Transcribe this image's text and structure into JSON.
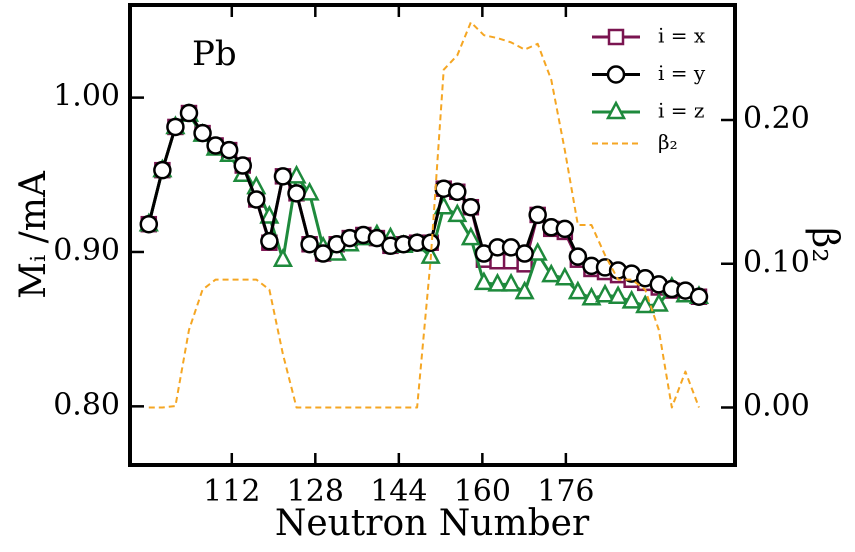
{
  "chart_data": {
    "type": "line",
    "annotation": "Pb",
    "xlabel": "Neutron Number",
    "ylabel": "Mᵢ /mA",
    "y2label": "β₂",
    "x": [
      96.1,
      98.7,
      101.2,
      103.8,
      106.4,
      108.9,
      111.5,
      114.1,
      116.7,
      119.2,
      121.8,
      124.4,
      126.9,
      129.5,
      132.1,
      134.6,
      137.2,
      139.8,
      142.4,
      144.9,
      147.5,
      150.1,
      152.6,
      155.2,
      157.8,
      160.3,
      162.9,
      165.5,
      168.1,
      170.6,
      173.2,
      175.8,
      178.3,
      180.9,
      183.5,
      186.0,
      188.6,
      191.2,
      193.8,
      196.3,
      198.9,
      201.5
    ],
    "series": [
      {
        "name": "i = x",
        "color": "#7a1450",
        "marker": "square",
        "axis": "y",
        "values": [
          0.918,
          0.953,
          0.981,
          0.99,
          0.977,
          0.969,
          0.966,
          0.956,
          0.934,
          0.906,
          0.949,
          0.938,
          0.905,
          0.899,
          0.905,
          0.909,
          0.911,
          0.909,
          0.904,
          0.905,
          0.906,
          0.906,
          0.941,
          0.939,
          0.929,
          0.895,
          0.894,
          0.894,
          0.892,
          0.924,
          0.915,
          0.913,
          0.895,
          0.889,
          0.887,
          0.885,
          0.882,
          0.88,
          0.877,
          0.875,
          0.873,
          0.871
        ]
      },
      {
        "name": "i = y",
        "color": "#000000",
        "marker": "circle",
        "axis": "y",
        "values": [
          0.918,
          0.953,
          0.981,
          0.99,
          0.977,
          0.969,
          0.966,
          0.956,
          0.934,
          0.907,
          0.949,
          0.938,
          0.905,
          0.899,
          0.905,
          0.909,
          0.911,
          0.909,
          0.904,
          0.905,
          0.906,
          0.906,
          0.941,
          0.939,
          0.929,
          0.899,
          0.903,
          0.903,
          0.899,
          0.924,
          0.916,
          0.915,
          0.897,
          0.891,
          0.89,
          0.888,
          0.886,
          0.883,
          0.879,
          0.876,
          0.875,
          0.871
        ]
      },
      {
        "name": "i = z",
        "color": "#1e8a3c",
        "marker": "triangle",
        "axis": "y",
        "values": [
          0.918,
          0.953,
          0.981,
          0.989,
          0.976,
          0.967,
          0.963,
          0.95,
          0.942,
          0.923,
          0.895,
          0.949,
          0.938,
          0.903,
          0.899,
          0.905,
          0.909,
          0.911,
          0.909,
          0.904,
          0.905,
          0.897,
          0.929,
          0.924,
          0.909,
          0.88,
          0.879,
          0.879,
          0.874,
          0.899,
          0.885,
          0.883,
          0.874,
          0.87,
          0.872,
          0.871,
          0.868,
          0.865,
          0.866,
          0.877,
          0.872,
          0.871
        ]
      },
      {
        "name": "β₂",
        "color": "#f5a623",
        "marker": "none",
        "dashed": true,
        "axis": "y2",
        "values": [
          0,
          0,
          0.001,
          0.054,
          0.082,
          0.089,
          0.089,
          0.089,
          0.089,
          0.082,
          0.037,
          0,
          0,
          0,
          0,
          0,
          0,
          0,
          0,
          0,
          0,
          0.103,
          0.235,
          0.245,
          0.268,
          0.259,
          0.257,
          0.254,
          0.249,
          0.253,
          0.228,
          0.179,
          0.127,
          0.127,
          0.106,
          0.089,
          0.089,
          0.082,
          0.054,
          0,
          0.025,
          0
        ]
      }
    ],
    "draw_order": [
      0,
      2,
      1,
      3
    ],
    "xlim": [
      92.5,
      208.4
    ],
    "xticks": [
      112,
      128,
      144,
      160,
      176
    ],
    "ylim": [
      0.762,
      1.06
    ],
    "yticks": [
      {
        "value": 0.8,
        "label": "0.80"
      },
      {
        "value": 0.9,
        "label": "0.90"
      },
      {
        "value": 1.0,
        "label": "1.00"
      }
    ],
    "y2lim": [
      -0.04,
      0.28
    ],
    "y2ticks": [
      {
        "value": 0,
        "label": "0.00"
      },
      {
        "value": 0.1,
        "label": "0.10"
      },
      {
        "value": 0.2,
        "label": "0.20"
      }
    ],
    "legend": "upper right",
    "grid": false
  }
}
